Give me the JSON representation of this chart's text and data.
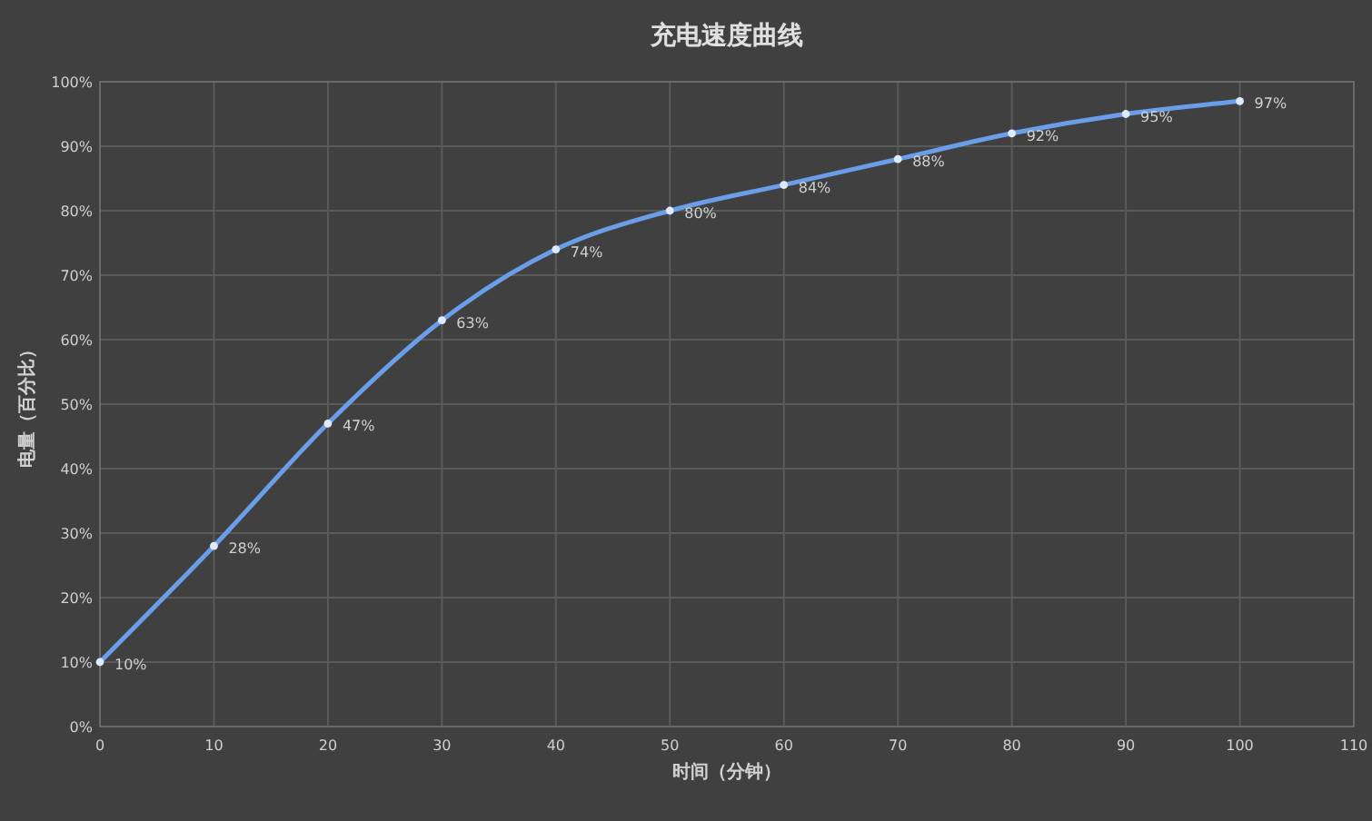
{
  "chart_data": {
    "type": "line",
    "title": "充电速度曲线",
    "xlabel": "时间（分钟）",
    "ylabel": "电量（百分比）",
    "x": [
      0,
      10,
      20,
      30,
      40,
      50,
      60,
      70,
      80,
      90,
      100
    ],
    "series": [
      {
        "color": "#6b9ee8",
        "values": [
          10,
          28,
          47,
          63,
          74,
          80,
          84,
          88,
          92,
          95,
          97
        ],
        "value_labels": [
          "10%",
          "28%",
          "47%",
          "63%",
          "74%",
          "80%",
          "84%",
          "88%",
          "92%",
          "95%",
          "97%"
        ]
      }
    ],
    "xlim": [
      0,
      110
    ],
    "xticks": [
      0,
      10,
      20,
      30,
      40,
      50,
      60,
      70,
      80,
      90,
      100,
      110
    ],
    "ylim": [
      0,
      100
    ],
    "yticks": [
      {
        "value": 0,
        "label": "0%"
      },
      {
        "value": 10,
        "label": "10%"
      },
      {
        "value": 20,
        "label": "20%"
      },
      {
        "value": 30,
        "label": "30%"
      },
      {
        "value": 40,
        "label": "40%"
      },
      {
        "value": 50,
        "label": "50%"
      },
      {
        "value": 60,
        "label": "60%"
      },
      {
        "value": 70,
        "label": "70%"
      },
      {
        "value": 80,
        "label": "80%"
      },
      {
        "value": 90,
        "label": "90%"
      },
      {
        "value": 100,
        "label": "100%"
      }
    ],
    "grid": true,
    "marker": "circle"
  }
}
